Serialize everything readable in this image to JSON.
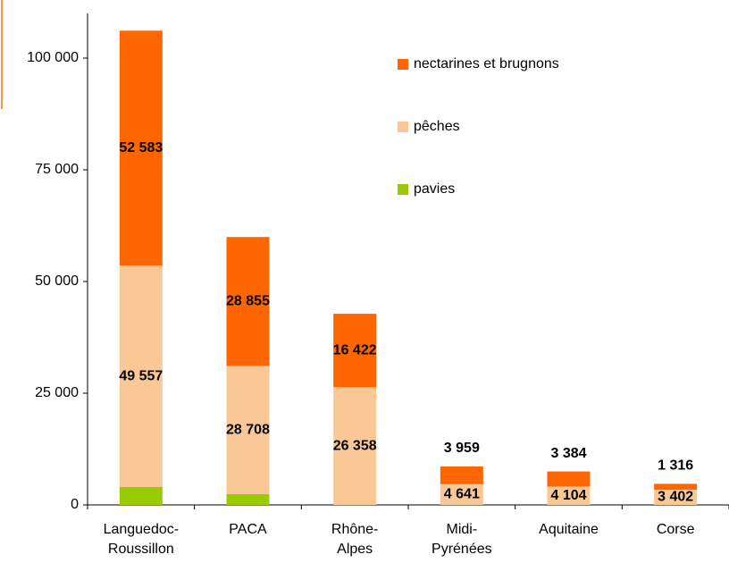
{
  "chart_data": {
    "type": "stacked-bar",
    "categories": [
      "Languedoc-\nRoussillon",
      "PACA",
      "Rhône-\nAlpes",
      "Midi-\nPyrénées",
      "Aquitaine",
      "Corse"
    ],
    "series": [
      {
        "name": "pavies",
        "color": "#99cc00",
        "values": [
          4000,
          2400,
          0,
          0,
          0,
          0
        ]
      },
      {
        "name": "pêches",
        "color": "#fac896",
        "values": [
          49557,
          28708,
          26358,
          4641,
          4104,
          3402
        ],
        "value_labels": [
          "49 557",
          "28 708",
          "26 358",
          "4 641",
          "4 104",
          "3 402"
        ]
      },
      {
        "name": "nectarines et brugnons",
        "color": "#ff6600",
        "values": [
          52583,
          28855,
          16422,
          3959,
          3384,
          1316
        ],
        "value_labels": [
          "52 583",
          "28 855",
          "16 422",
          "3 959",
          "3 384",
          "1 316"
        ]
      }
    ],
    "ylim": [
      0,
      110000
    ],
    "yticks": [
      0,
      {
        "value": 25000,
        "label": "25 000"
      },
      {
        "value": 50000,
        "label": "50 000"
      },
      {
        "value": 75000,
        "label": "75 000"
      },
      {
        "value": 100000,
        "label": "100 000"
      }
    ],
    "legend": "top-right",
    "grid": false
  }
}
